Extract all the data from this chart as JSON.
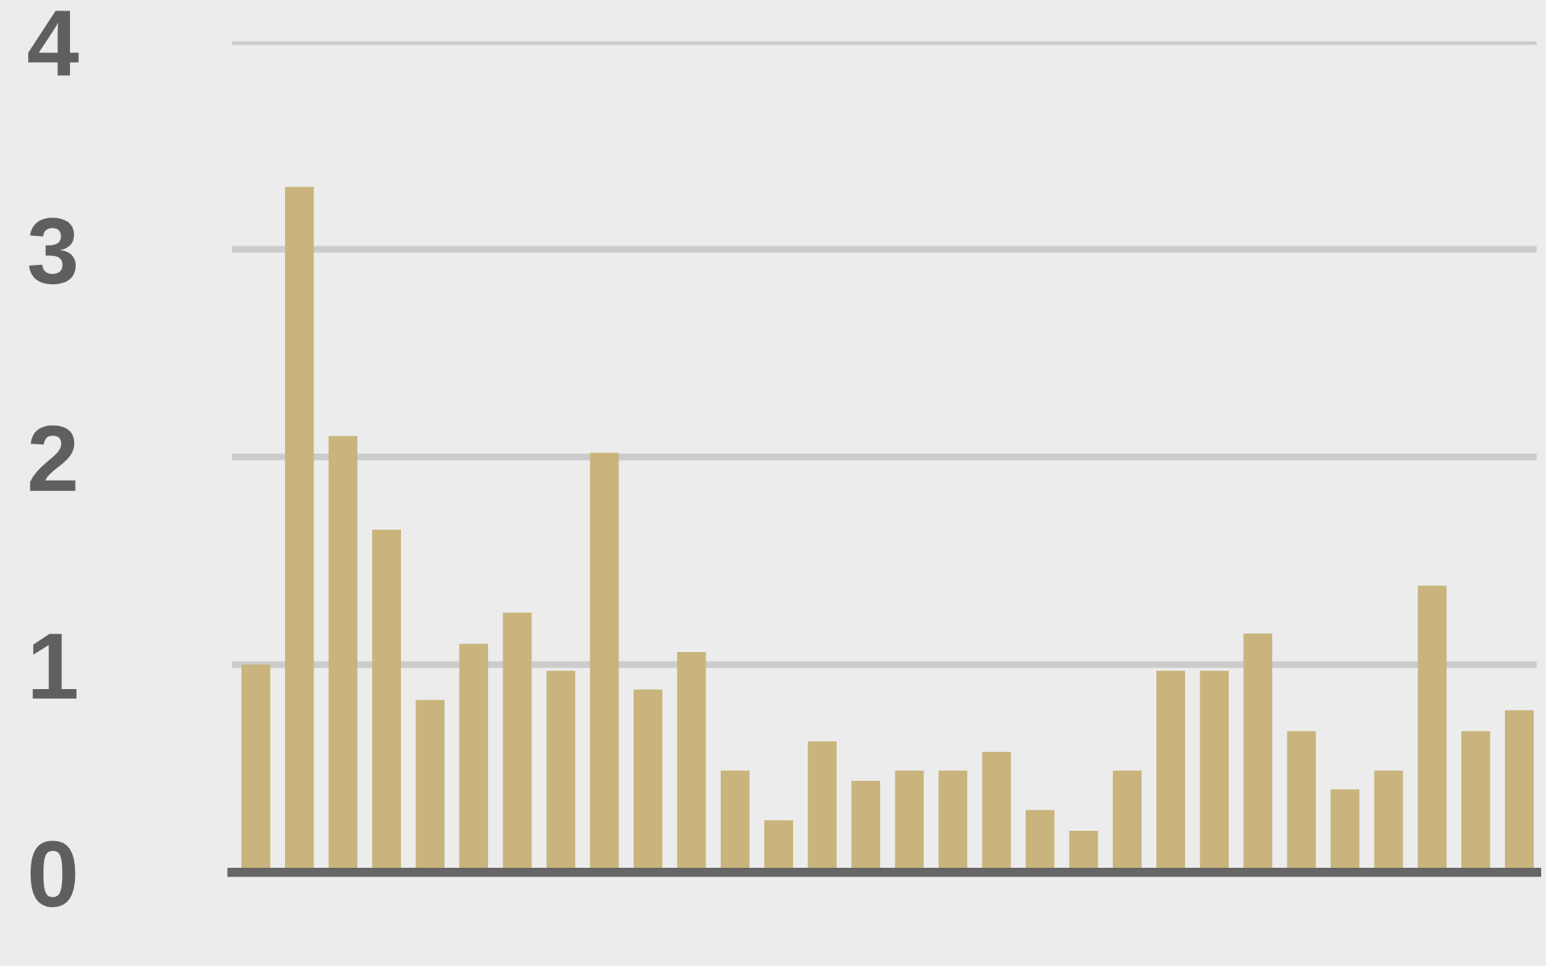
{
  "chart_data": {
    "type": "bar",
    "categories": [
      null,
      null,
      null,
      null,
      null,
      null,
      null,
      null,
      null,
      null,
      null,
      null,
      null,
      null,
      null,
      null,
      null,
      null,
      null,
      null,
      null,
      null,
      null,
      null,
      null,
      null,
      null,
      null,
      null,
      null
    ],
    "values": [
      1.0,
      3.3,
      2.1,
      1.65,
      0.83,
      1.1,
      1.25,
      0.97,
      2.02,
      0.88,
      1.06,
      0.49,
      0.25,
      0.63,
      0.44,
      0.49,
      0.49,
      0.58,
      0.3,
      0.2,
      0.49,
      0.97,
      0.97,
      1.15,
      0.68,
      0.4,
      0.49,
      1.38,
      0.68,
      0.78
    ],
    "color": "#c8b47c",
    "ylim": [
      0,
      4
    ],
    "yticks": [
      0,
      1,
      2,
      3,
      4
    ],
    "grid": "y",
    "tick_labels": "y"
  }
}
